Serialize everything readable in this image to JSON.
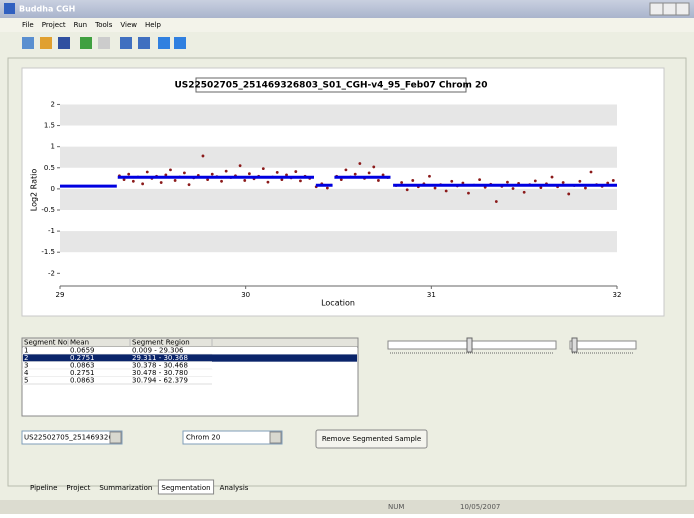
{
  "window": {
    "title": "Buddha CGH"
  },
  "menu": [
    "File",
    "Project",
    "Run",
    "Tools",
    "View",
    "Help"
  ],
  "chart_data": {
    "type": "scatter",
    "title": "US22502705_251469326803_S01_CGH-v4_95_Feb07 Chrom 20",
    "x_label": "Location",
    "y_label": "Log2 Ratio",
    "xlim": [
      29,
      32
    ],
    "xticks": [
      29,
      30,
      31,
      32
    ],
    "ylim": [
      -2.3,
      2.2
    ],
    "yticks": [
      -2,
      -1.5,
      -1,
      -0.5,
      0,
      0.5,
      1,
      1.5,
      2
    ],
    "grid": true,
    "color": "#8b1a1a",
    "segment_color": "#0000e0",
    "segment_x": [
      [
        0.009,
        29.306
      ],
      [
        29.311,
        30.368
      ],
      [
        30.378,
        30.468
      ],
      [
        30.478,
        30.78
      ],
      [
        30.794,
        62.379
      ]
    ],
    "points": {
      "x": [
        29.32,
        29.345,
        29.37,
        29.395,
        29.42,
        29.445,
        29.47,
        29.495,
        29.52,
        29.545,
        29.57,
        29.595,
        29.62,
        29.645,
        29.67,
        29.695,
        29.72,
        29.745,
        29.77,
        29.795,
        29.82,
        29.845,
        29.87,
        29.895,
        29.92,
        29.945,
        29.97,
        29.995,
        30.02,
        30.045,
        30.07,
        30.095,
        30.12,
        30.145,
        30.17,
        30.195,
        30.22,
        30.245,
        30.27,
        30.295,
        30.32,
        30.345,
        30.38,
        30.41,
        30.44,
        30.46,
        30.49,
        30.515,
        30.54,
        30.565,
        30.59,
        30.615,
        30.64,
        30.665,
        30.69,
        30.715,
        30.74,
        30.765,
        30.81,
        30.84,
        30.87,
        30.9,
        30.93,
        30.96,
        30.99,
        31.02,
        31.05,
        31.08,
        31.11,
        31.14,
        31.17,
        31.2,
        31.23,
        31.26,
        31.29,
        31.32,
        31.35,
        31.38,
        31.41,
        31.44,
        31.47,
        31.5,
        31.53,
        31.56,
        31.59,
        31.62,
        31.65,
        31.68,
        31.71,
        31.74,
        31.77,
        31.8,
        31.83,
        31.86,
        31.89,
        31.92,
        31.95,
        31.98
      ],
      "y": [
        0.31,
        0.22,
        0.35,
        0.18,
        0.28,
        0.12,
        0.4,
        0.25,
        0.3,
        0.15,
        0.33,
        0.45,
        0.2,
        0.28,
        0.38,
        0.1,
        0.26,
        0.32,
        0.78,
        0.22,
        0.35,
        0.29,
        0.18,
        0.42,
        0.27,
        0.31,
        0.55,
        0.2,
        0.36,
        0.24,
        0.3,
        0.48,
        0.16,
        0.28,
        0.39,
        0.22,
        0.33,
        0.26,
        0.41,
        0.19,
        0.3,
        0.25,
        0.05,
        0.12,
        0.02,
        0.09,
        0.3,
        0.22,
        0.45,
        0.28,
        0.35,
        0.6,
        0.25,
        0.38,
        0.52,
        0.2,
        0.33,
        0.27,
        0.08,
        0.15,
        -0.02,
        0.2,
        0.05,
        0.12,
        0.3,
        0.02,
        0.1,
        -0.05,
        0.18,
        0.07,
        0.14,
        -0.1,
        0.09,
        0.22,
        0.04,
        0.11,
        -0.3,
        0.06,
        0.16,
        0.01,
        0.13,
        -0.08,
        0.1,
        0.19,
        0.03,
        0.12,
        0.28,
        0.05,
        0.15,
        -0.12,
        0.08,
        0.18,
        0.02,
        0.4,
        0.1,
        0.06,
        0.14,
        0.2
      ]
    }
  },
  "table": {
    "headers": [
      "Segment No",
      "Mean",
      "Segment Region"
    ],
    "selected": 1,
    "rows": [
      {
        "no": 1,
        "mean": 0.0659,
        "region": "0.009 - 29.306"
      },
      {
        "no": 2,
        "mean": 0.2751,
        "region": "29.311 - 30.368"
      },
      {
        "no": 3,
        "mean": 0.0863,
        "region": "30.378 - 30.468"
      },
      {
        "no": 4,
        "mean": 0.2751,
        "region": "30.478 - 30.780"
      },
      {
        "no": 5,
        "mean": 0.0863,
        "region": "30.794 - 62.379"
      }
    ]
  },
  "controls": {
    "sample_select": "US22502705_251469326",
    "chrom_select": "Chrom 20",
    "remove_button": "Remove Segmented Sample"
  },
  "tabs": [
    "Pipeline",
    "Project",
    "Summarization",
    "Segmentation",
    "Analysis"
  ],
  "active_tab": 3,
  "status": {
    "num": "NUM",
    "date": "10/05/2007"
  }
}
